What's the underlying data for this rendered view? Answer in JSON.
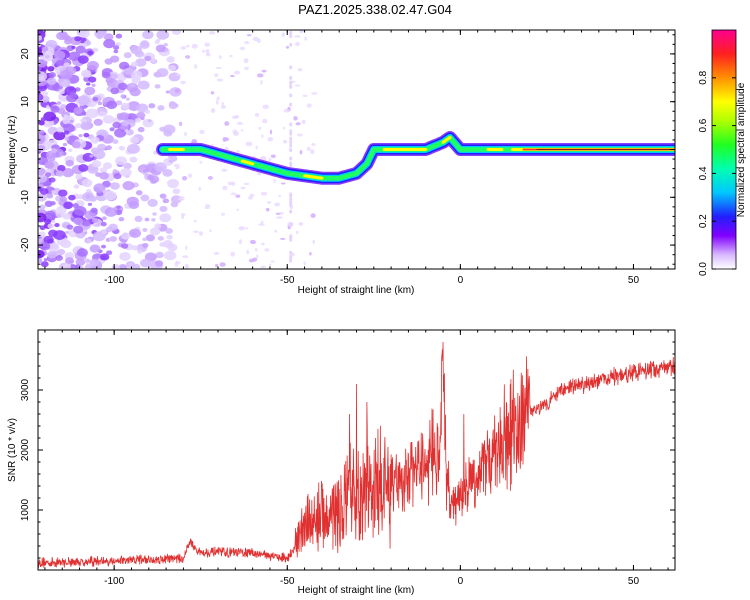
{
  "title": "PAZ1.2025.338.02.47.G04",
  "chart_data": [
    {
      "type": "heatmap",
      "name": "spectrogram",
      "xlabel": "Height of straight line (km)",
      "ylabel": "Frequency (Hz)",
      "xlim": [
        -122,
        62
      ],
      "ylim": [
        -25,
        25
      ],
      "x_ticks": [
        -100,
        -50,
        0,
        50
      ],
      "y_ticks": [
        -20,
        -10,
        0,
        10,
        20
      ],
      "colorbar": {
        "label": "Normalized spectral amplitude",
        "range": [
          0,
          1
        ],
        "ticks": [
          0.0,
          0.2,
          0.4,
          0.6,
          0.8
        ],
        "tick_labels": [
          "0.0",
          "0.2",
          "0.4",
          "0.6",
          "0.8"
        ]
      },
      "ridge": {
        "x": [
          -86,
          -80,
          -75,
          -70,
          -65,
          -60,
          -55,
          -50,
          -45,
          -40,
          -35,
          -30,
          -27,
          -25,
          -20,
          -15,
          -10,
          -5,
          -3,
          0,
          5,
          10,
          15,
          20,
          30,
          40,
          50,
          62
        ],
        "y": [
          0,
          0,
          0,
          -1,
          -2,
          -3,
          -4,
          -5,
          -5.5,
          -6,
          -6,
          -5,
          -3,
          0,
          0,
          0,
          0,
          1.5,
          2.5,
          0,
          0,
          0,
          0,
          0,
          0,
          0,
          0,
          0
        ]
      }
    },
    {
      "type": "line",
      "name": "snr",
      "xlabel": "Height of straight line (km)",
      "ylabel": "SNR (10 * v/v)",
      "xlim": [
        -122,
        62
      ],
      "ylim": [
        0,
        4000
      ],
      "x_ticks": [
        -100,
        -50,
        0,
        50
      ],
      "y_ticks": [
        1000,
        2000,
        3000
      ],
      "color": "#e03030",
      "envelope": {
        "x": [
          -122,
          -100,
          -80,
          -78,
          -76,
          -60,
          -50,
          -48,
          -45,
          -40,
          -35,
          -30,
          -25,
          -20,
          -15,
          -10,
          -8,
          -6,
          -5,
          -4,
          -3,
          0,
          5,
          10,
          15,
          20,
          25,
          30,
          40,
          50,
          62
        ],
        "y": [
          120,
          150,
          200,
          480,
          300,
          280,
          200,
          350,
          700,
          900,
          1000,
          1200,
          1300,
          1400,
          1600,
          1800,
          2000,
          1700,
          3800,
          1500,
          1100,
          1200,
          1600,
          2000,
          2400,
          2600,
          2800,
          3000,
          3150,
          3300,
          3400
        ]
      },
      "spikes": [
        {
          "x": -32,
          "y": 2600
        },
        {
          "x": -30,
          "y": 3100
        },
        {
          "x": -27,
          "y": 2800
        },
        {
          "x": -5,
          "y": 3800
        },
        {
          "x": 1,
          "y": 2600
        }
      ]
    }
  ]
}
